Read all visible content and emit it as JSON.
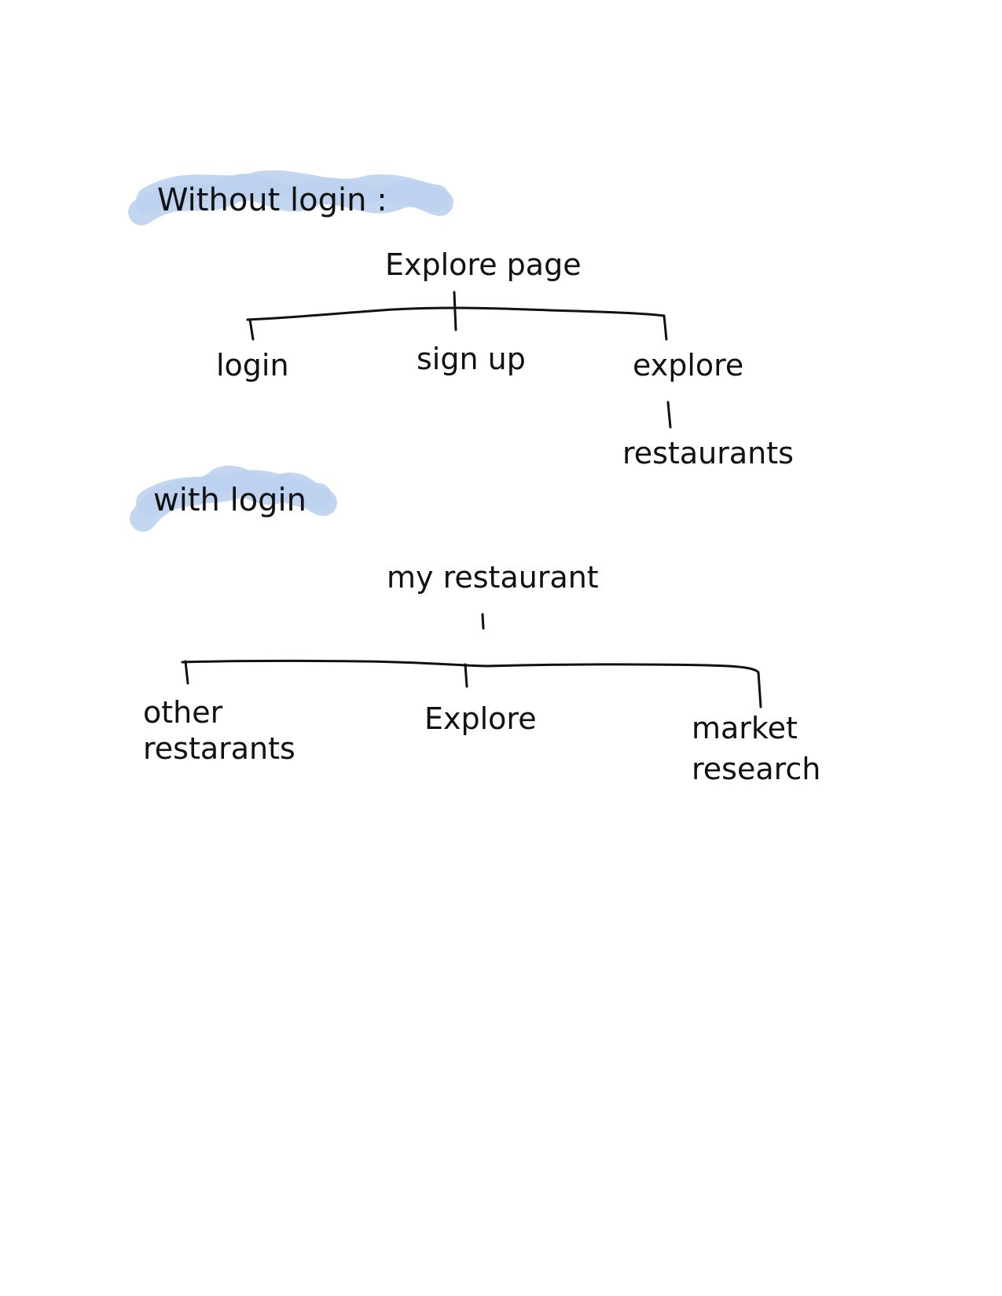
{
  "colors": {
    "highlight": "#bcd1ee",
    "ink": "#111111",
    "background": "#ffffff"
  },
  "without_login": {
    "heading": "Without login :",
    "root": "Explore page",
    "children": [
      "login",
      "sign up",
      "explore"
    ],
    "grandchild": "restaurants"
  },
  "with_login": {
    "heading": "with login",
    "root": "my restaurant",
    "children": [
      "other restarants",
      "Explore",
      "market research"
    ]
  }
}
